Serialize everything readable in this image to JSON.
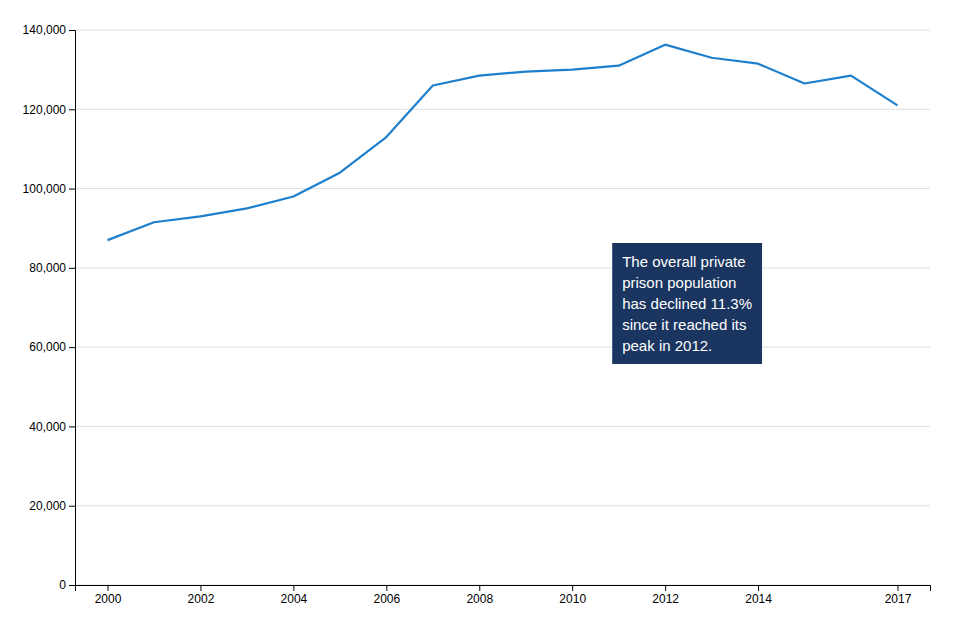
{
  "chart_data": {
    "type": "line",
    "x": [
      2000,
      2001,
      2002,
      2003,
      2004,
      2005,
      2006,
      2007,
      2008,
      2009,
      2010,
      2011,
      2012,
      2013,
      2014,
      2015,
      2016,
      2017
    ],
    "values": [
      87000,
      91500,
      93000,
      95000,
      98000,
      104000,
      113000,
      126000,
      128500,
      129500,
      130000,
      131000,
      136300,
      133000,
      131500,
      126500,
      128500,
      121000
    ],
    "color": "#1e7fcc",
    "xlim": [
      1999.3,
      2017.7
    ],
    "xticks": [
      2000,
      2002,
      2004,
      2006,
      2008,
      2010,
      2012,
      2014,
      2017
    ],
    "ylim": [
      0,
      140000
    ],
    "yticks": [
      {
        "value": 0,
        "label": "0"
      },
      {
        "value": 20000,
        "label": "20,000"
      },
      {
        "value": 40000,
        "label": "40,000"
      },
      {
        "value": 60000,
        "label": "60,000"
      },
      {
        "value": 80000,
        "label": "80,000"
      },
      {
        "value": 100000,
        "label": "100,000"
      },
      {
        "value": 120000,
        "label": "120,000"
      },
      {
        "value": 140000,
        "label": "140,000"
      }
    ],
    "grid": true,
    "annotation": "The overall private\nprison population\nhas declined 11.3%\nsince it reached its\npeak in 2012."
  }
}
